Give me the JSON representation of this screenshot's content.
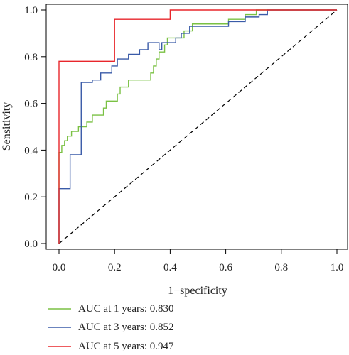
{
  "chart_data": {
    "type": "line",
    "xlabel": "1−specificity",
    "ylabel": "Sensitivity",
    "xlim": [
      0,
      1
    ],
    "ylim": [
      0,
      1
    ],
    "x_ticks": [
      "0.0",
      "0.2",
      "0.4",
      "0.6",
      "0.8",
      "1.0"
    ],
    "y_ticks": [
      "0.0",
      "0.2",
      "0.4",
      "0.6",
      "0.8",
      "1.0"
    ],
    "grid": false,
    "legend_position": "bottom-left",
    "reference_line": {
      "style": "dashed",
      "color": "#000000",
      "points": [
        [
          0,
          0
        ],
        [
          1,
          1
        ]
      ]
    },
    "series": [
      {
        "name": "AUC at 1 years: 0.830",
        "color": "#7ac143",
        "points": [
          [
            0,
            0
          ],
          [
            0,
            0.39
          ],
          [
            0.01,
            0.39
          ],
          [
            0.01,
            0.42
          ],
          [
            0.02,
            0.42
          ],
          [
            0.02,
            0.44
          ],
          [
            0.03,
            0.44
          ],
          [
            0.03,
            0.46
          ],
          [
            0.045,
            0.46
          ],
          [
            0.045,
            0.48
          ],
          [
            0.07,
            0.48
          ],
          [
            0.07,
            0.5
          ],
          [
            0.1,
            0.5
          ],
          [
            0.1,
            0.52
          ],
          [
            0.12,
            0.52
          ],
          [
            0.12,
            0.55
          ],
          [
            0.16,
            0.55
          ],
          [
            0.16,
            0.58
          ],
          [
            0.17,
            0.58
          ],
          [
            0.17,
            0.61
          ],
          [
            0.21,
            0.61
          ],
          [
            0.21,
            0.64
          ],
          [
            0.22,
            0.64
          ],
          [
            0.22,
            0.67
          ],
          [
            0.25,
            0.67
          ],
          [
            0.25,
            0.7
          ],
          [
            0.33,
            0.7
          ],
          [
            0.33,
            0.73
          ],
          [
            0.34,
            0.73
          ],
          [
            0.34,
            0.76
          ],
          [
            0.35,
            0.76
          ],
          [
            0.35,
            0.79
          ],
          [
            0.36,
            0.79
          ],
          [
            0.36,
            0.82
          ],
          [
            0.38,
            0.82
          ],
          [
            0.38,
            0.85
          ],
          [
            0.39,
            0.85
          ],
          [
            0.39,
            0.88
          ],
          [
            0.45,
            0.88
          ],
          [
            0.45,
            0.91
          ],
          [
            0.48,
            0.91
          ],
          [
            0.48,
            0.94
          ],
          [
            0.61,
            0.94
          ],
          [
            0.61,
            0.96
          ],
          [
            0.67,
            0.96
          ],
          [
            0.67,
            0.98
          ],
          [
            0.71,
            0.98
          ],
          [
            0.71,
            1.0
          ],
          [
            1.0,
            1.0
          ]
        ]
      },
      {
        "name": "AUC at 3 years: 0.852",
        "color": "#3a5ba8",
        "points": [
          [
            0,
            0
          ],
          [
            0,
            0.235
          ],
          [
            0.04,
            0.235
          ],
          [
            0.04,
            0.38
          ],
          [
            0.08,
            0.38
          ],
          [
            0.08,
            0.69
          ],
          [
            0.12,
            0.69
          ],
          [
            0.12,
            0.7
          ],
          [
            0.15,
            0.7
          ],
          [
            0.15,
            0.73
          ],
          [
            0.19,
            0.73
          ],
          [
            0.19,
            0.76
          ],
          [
            0.21,
            0.76
          ],
          [
            0.21,
            0.79
          ],
          [
            0.25,
            0.79
          ],
          [
            0.25,
            0.81
          ],
          [
            0.29,
            0.81
          ],
          [
            0.29,
            0.83
          ],
          [
            0.32,
            0.83
          ],
          [
            0.32,
            0.86
          ],
          [
            0.36,
            0.86
          ],
          [
            0.36,
            0.83
          ],
          [
            0.37,
            0.83
          ],
          [
            0.37,
            0.86
          ],
          [
            0.42,
            0.86
          ],
          [
            0.42,
            0.88
          ],
          [
            0.44,
            0.88
          ],
          [
            0.44,
            0.9
          ],
          [
            0.47,
            0.9
          ],
          [
            0.47,
            0.93
          ],
          [
            0.61,
            0.93
          ],
          [
            0.61,
            0.95
          ],
          [
            0.67,
            0.95
          ],
          [
            0.67,
            0.97
          ],
          [
            0.72,
            0.97
          ],
          [
            0.72,
            0.98
          ],
          [
            0.75,
            0.98
          ],
          [
            0.75,
            1.0
          ],
          [
            1.0,
            1.0
          ]
        ]
      },
      {
        "name": "AUC at 5 years: 0.947",
        "color": "#e8262b",
        "points": [
          [
            0,
            0
          ],
          [
            0,
            0.78
          ],
          [
            0.2,
            0.78
          ],
          [
            0.2,
            0.96
          ],
          [
            0.4,
            0.96
          ],
          [
            0.4,
            1.0
          ],
          [
            1.0,
            1.0
          ]
        ]
      }
    ]
  }
}
